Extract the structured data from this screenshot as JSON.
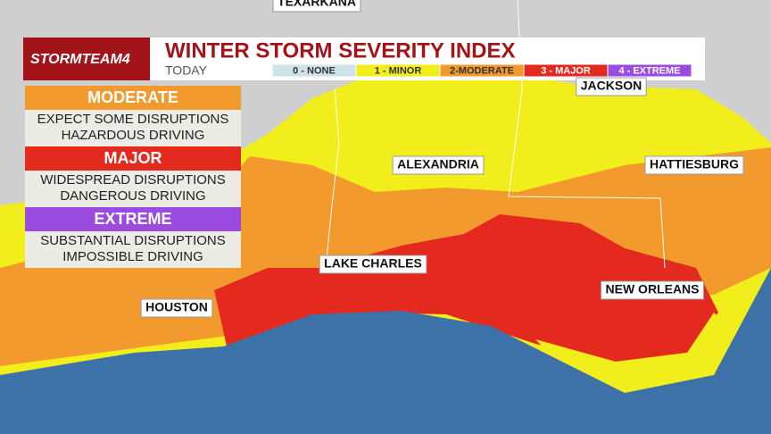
{
  "header": {
    "logo": "STORMTEAM4",
    "title": "WINTER STORM SEVERITY INDEX",
    "subtitle": "TODAY"
  },
  "legend": [
    "0 - NONE",
    "1 - MINOR",
    "2-MODERATE",
    "3 - MAJOR",
    "4 - EXTREME"
  ],
  "panel": [
    {
      "level": "MODERATE",
      "lines": [
        "EXPECT SOME DISRUPTIONS",
        "HAZARDOUS DRIVING"
      ]
    },
    {
      "level": "MAJOR",
      "lines": [
        "WIDESPREAD DISRUPTIONS",
        "DANGEROUS DRIVING"
      ]
    },
    {
      "level": "EXTREME",
      "lines": [
        "SUBSTANTIAL DISRUPTIONS",
        "IMPOSSIBLE DRIVING"
      ]
    }
  ],
  "cities": [
    "TEXARKANA",
    "JACKSON",
    "ALEXANDRIA",
    "HATTIESBURG",
    "LAKE CHARLES",
    "HOUSTON",
    "NEW ORLEANS"
  ]
}
